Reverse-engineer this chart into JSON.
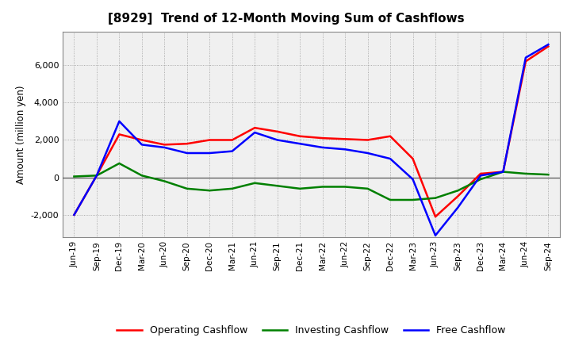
{
  "title": "[8929]  Trend of 12-Month Moving Sum of Cashflows",
  "ylabel": "Amount (million yen)",
  "x_labels": [
    "Jun-19",
    "Sep-19",
    "Dec-19",
    "Mar-20",
    "Jun-20",
    "Sep-20",
    "Dec-20",
    "Mar-21",
    "Jun-21",
    "Sep-21",
    "Dec-21",
    "Mar-22",
    "Jun-22",
    "Sep-22",
    "Dec-22",
    "Mar-23",
    "Jun-23",
    "Sep-23",
    "Dec-23",
    "Mar-24",
    "Jun-24",
    "Sep-24"
  ],
  "operating": [
    -2000,
    100,
    2300,
    2000,
    1750,
    1800,
    2000,
    2000,
    2650,
    2450,
    2200,
    2100,
    2050,
    2000,
    2200,
    1000,
    -2100,
    -1000,
    200,
    300,
    6200,
    7000
  ],
  "investing": [
    50,
    100,
    750,
    100,
    -200,
    -600,
    -700,
    -600,
    -300,
    -450,
    -600,
    -500,
    -500,
    -600,
    -1200,
    -1200,
    -1100,
    -700,
    -100,
    300,
    200,
    150
  ],
  "free": [
    -2000,
    100,
    3000,
    1750,
    1600,
    1300,
    1300,
    1400,
    2400,
    2000,
    1800,
    1600,
    1500,
    1300,
    1000,
    -100,
    -3100,
    -1600,
    100,
    300,
    6400,
    7100
  ],
  "ylim": [
    -3200,
    7800
  ],
  "yticks": [
    -2000,
    0,
    2000,
    4000,
    6000
  ],
  "operating_color": "#ff0000",
  "investing_color": "#008000",
  "free_color": "#0000ff",
  "line_width": 1.8,
  "background_color": "#ffffff",
  "plot_bg_color": "#f0f0f0",
  "grid_color": "#999999",
  "zero_line_color": "#555555"
}
